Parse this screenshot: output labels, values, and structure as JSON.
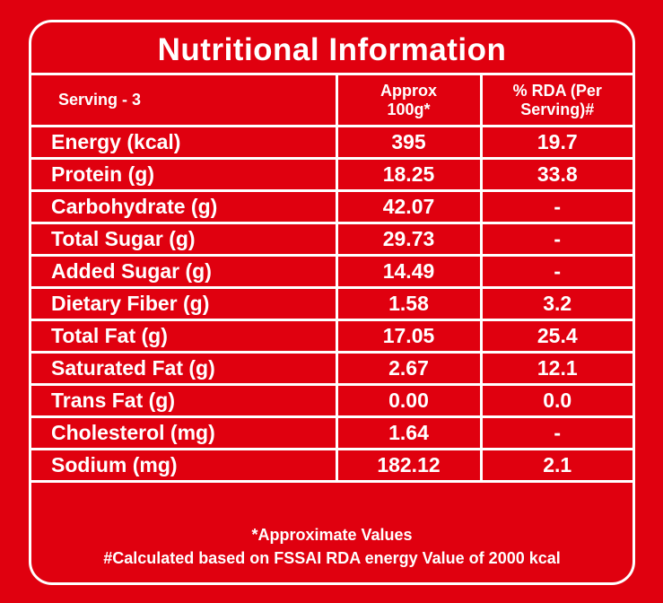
{
  "title": "Nutritional Information",
  "header": {
    "serving": "Serving - 3",
    "col2_line1": "Approx",
    "col2_line2": "100g*",
    "col3_line1": "% RDA (Per",
    "col3_line2": "Serving)#"
  },
  "rows": [
    {
      "nutrient": "Energy (kcal)",
      "per100g": "395",
      "rda": "19.7"
    },
    {
      "nutrient": "Protein (g)",
      "per100g": "18.25",
      "rda": "33.8"
    },
    {
      "nutrient": "Carbohydrate (g)",
      "per100g": "42.07",
      "rda": "-"
    },
    {
      "nutrient": "Total Sugar (g)",
      "per100g": "29.73",
      "rda": "-"
    },
    {
      "nutrient": "Added Sugar (g)",
      "per100g": "14.49",
      "rda": "-"
    },
    {
      "nutrient": "Dietary Fiber (g)",
      "per100g": "1.58",
      "rda": "3.2"
    },
    {
      "nutrient": "Total Fat (g)",
      "per100g": "17.05",
      "rda": "25.4"
    },
    {
      "nutrient": "Saturated Fat (g)",
      "per100g": "2.67",
      "rda": "12.1"
    },
    {
      "nutrient": "Trans Fat (g)",
      "per100g": "0.00",
      "rda": "0.0"
    },
    {
      "nutrient": "Cholesterol (mg)",
      "per100g": "1.64",
      "rda": "-"
    },
    {
      "nutrient": "Sodium (mg)",
      "per100g": "182.12",
      "rda": "2.1"
    }
  ],
  "footer": {
    "note1": "*Approximate Values",
    "note2": "#Calculated based on FSSAI RDA energy Value of 2000 kcal"
  },
  "colors": {
    "background": "#e0000f",
    "text": "#ffffff"
  }
}
